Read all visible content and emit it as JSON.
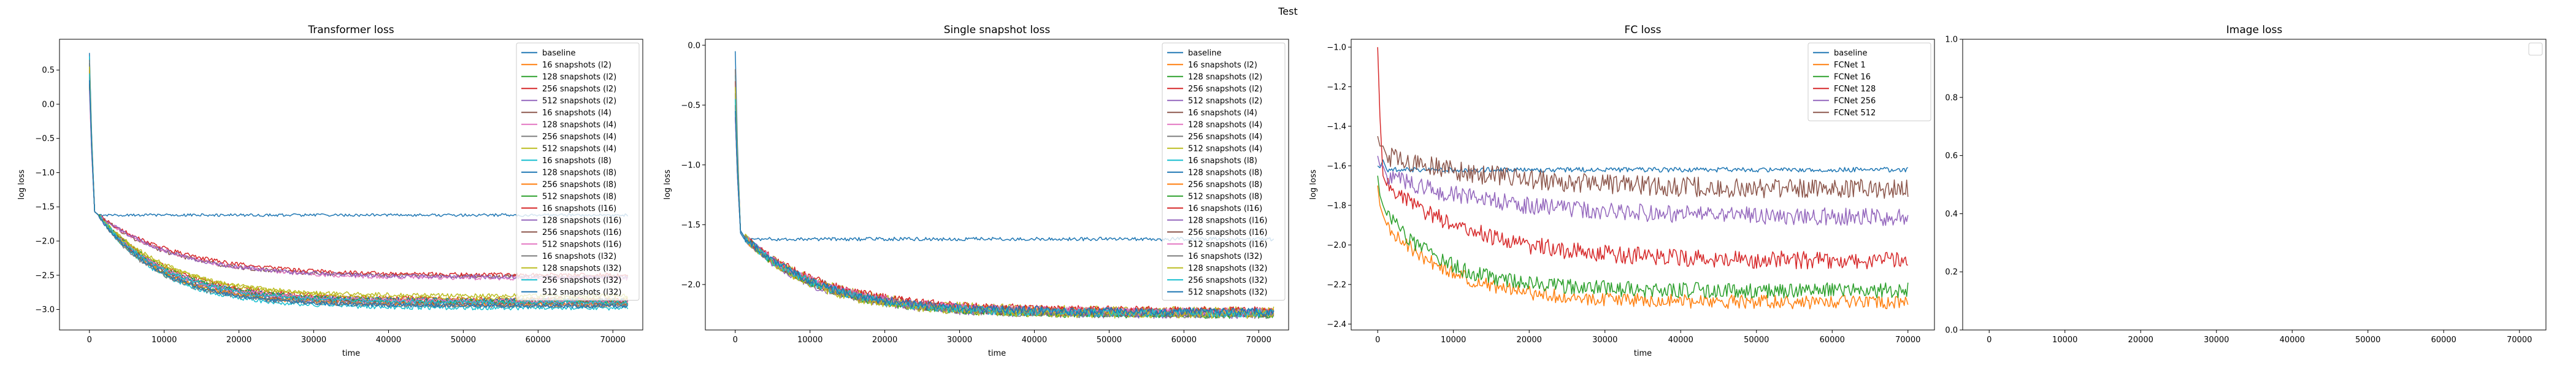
{
  "figure": {
    "suptitle": "Test"
  },
  "palette": [
    "#1f77b4",
    "#ff7f0e",
    "#2ca02c",
    "#d62728",
    "#9467bd",
    "#8c564b",
    "#e377c2",
    "#7f7f7f",
    "#bcbd22",
    "#17becf"
  ],
  "chart_data": [
    {
      "id": "transformer",
      "type": "line",
      "title": "Transformer loss",
      "xlabel": "time",
      "ylabel": "log loss",
      "xlim": [
        -4000,
        74000
      ],
      "ylim": [
        -3.3,
        0.95
      ],
      "xticks": [
        0,
        10000,
        20000,
        30000,
        40000,
        50000,
        60000,
        70000
      ],
      "xtick_labels": [
        "0",
        "10000",
        "20000",
        "30000",
        "40000",
        "50000",
        "60000",
        "70000"
      ],
      "yticks": [
        -3.0,
        -2.5,
        -2.0,
        -1.5,
        -1.0,
        -0.5,
        0.0,
        0.5
      ],
      "ytick_labels": [
        "−3.0",
        "−2.5",
        "−2.0",
        "−1.5",
        "−1.0",
        "−0.5",
        "0.0",
        "0.5"
      ],
      "legend_position": "upper right",
      "series": [
        {
          "name": "baseline",
          "start": 0.75,
          "knee": -1.62,
          "final": -1.62,
          "tau": 0,
          "noise": 0.02,
          "x_end": 72000
        },
        {
          "name": "16 snapshots (l2)",
          "start": 0.6,
          "knee": -1.62,
          "final": -2.88,
          "tau": 9000,
          "noise": 0.03,
          "x_end": 72000
        },
        {
          "name": "128 snapshots (l2)",
          "start": 0.5,
          "knee": -1.62,
          "final": -2.9,
          "tau": 8000,
          "noise": 0.03,
          "x_end": 72000
        },
        {
          "name": "256 snapshots (l2)",
          "start": 0.4,
          "knee": -1.62,
          "final": -2.85,
          "tau": 9500,
          "noise": 0.03,
          "x_end": 72000
        },
        {
          "name": "512 snapshots (l2)",
          "start": 0.3,
          "knee": -1.62,
          "final": -2.92,
          "tau": 9000,
          "noise": 0.03,
          "x_end": 72000
        },
        {
          "name": "16 snapshots (l4)",
          "start": 0.55,
          "knee": -1.62,
          "final": -2.52,
          "tau": 10000,
          "noise": 0.03,
          "x_end": 72000
        },
        {
          "name": "128 snapshots (l4)",
          "start": 0.45,
          "knee": -1.62,
          "final": -2.55,
          "tau": 11000,
          "noise": 0.03,
          "x_end": 72000
        },
        {
          "name": "256 snapshots (l4)",
          "start": 0.35,
          "knee": -1.62,
          "final": -2.95,
          "tau": 9000,
          "noise": 0.03,
          "x_end": 72000
        },
        {
          "name": "512 snapshots (l4)",
          "start": 0.25,
          "knee": -1.62,
          "final": -2.85,
          "tau": 10000,
          "noise": 0.03,
          "x_end": 72000
        },
        {
          "name": "16 snapshots (l8)",
          "start": 0.7,
          "knee": -1.62,
          "final": -2.98,
          "tau": 8500,
          "noise": 0.03,
          "x_end": 72000
        },
        {
          "name": "128 snapshots (l8)",
          "start": 0.6,
          "knee": -1.62,
          "final": -2.87,
          "tau": 9000,
          "noise": 0.03,
          "x_end": 72000
        },
        {
          "name": "256 snapshots (l8)",
          "start": 0.4,
          "knee": -1.62,
          "final": -2.93,
          "tau": 8500,
          "noise": 0.03,
          "x_end": 72000
        },
        {
          "name": "512 snapshots (l8)",
          "start": 0.3,
          "knee": -1.62,
          "final": -2.89,
          "tau": 9500,
          "noise": 0.03,
          "x_end": 72000
        },
        {
          "name": "16 snapshots (l16)",
          "start": 0.5,
          "knee": -1.62,
          "final": -2.5,
          "tau": 11000,
          "noise": 0.03,
          "x_end": 72000
        },
        {
          "name": "128 snapshots (l16)",
          "start": 0.4,
          "knee": -1.62,
          "final": -2.53,
          "tau": 10500,
          "noise": 0.03,
          "x_end": 72000
        },
        {
          "name": "256 snapshots (l16)",
          "start": 0.3,
          "knee": -1.62,
          "final": -2.9,
          "tau": 9000,
          "noise": 0.03,
          "x_end": 72000
        },
        {
          "name": "512 snapshots (l16)",
          "start": 0.2,
          "knee": -1.62,
          "final": -2.88,
          "tau": 9000,
          "noise": 0.03,
          "x_end": 72000
        },
        {
          "name": "16 snapshots (l32)",
          "start": 0.65,
          "knee": -1.62,
          "final": -2.94,
          "tau": 8000,
          "noise": 0.03,
          "x_end": 72000
        },
        {
          "name": "128 snapshots (l32)",
          "start": 0.55,
          "knee": -1.62,
          "final": -2.8,
          "tau": 9000,
          "noise": 0.03,
          "x_end": 72000
        },
        {
          "name": "256 snapshots (l32)",
          "start": 0.45,
          "knee": -1.62,
          "final": -2.9,
          "tau": 9000,
          "noise": 0.03,
          "x_end": 72000
        },
        {
          "name": "512 snapshots (l32)",
          "start": 0.35,
          "knee": -1.62,
          "final": -2.95,
          "tau": 8500,
          "noise": 0.03,
          "x_end": 72000
        }
      ]
    },
    {
      "id": "single",
      "type": "line",
      "title": "Single snapshot loss",
      "xlabel": "time",
      "ylabel": "log loss",
      "xlim": [
        -4000,
        74000
      ],
      "ylim": [
        -2.38,
        0.05
      ],
      "xticks": [
        0,
        10000,
        20000,
        30000,
        40000,
        50000,
        60000,
        70000
      ],
      "xtick_labels": [
        "0",
        "10000",
        "20000",
        "30000",
        "40000",
        "50000",
        "60000",
        "70000"
      ],
      "yticks": [
        -2.0,
        -1.5,
        -1.0,
        -0.5,
        0.0
      ],
      "ytick_labels": [
        "−2.0",
        "−1.5",
        "−1.0",
        "−0.5",
        "0.0"
      ],
      "legend_position": "upper right",
      "series": [
        {
          "name": "baseline",
          "start": -0.05,
          "knee": -1.62,
          "final": -1.62,
          "tau": 0,
          "noise": 0.015,
          "x_end": 72000
        },
        {
          "name": "16 snapshots (l2)",
          "start": -0.3,
          "knee": -1.6,
          "final": -2.24,
          "tau": 10000,
          "noise": 0.035,
          "x_end": 72000
        },
        {
          "name": "128 snapshots (l2)",
          "start": -0.4,
          "knee": -1.6,
          "final": -2.24,
          "tau": 10000,
          "noise": 0.035,
          "x_end": 72000
        },
        {
          "name": "256 snapshots (l2)",
          "start": -0.5,
          "knee": -1.6,
          "final": -2.23,
          "tau": 10500,
          "noise": 0.035,
          "x_end": 72000
        },
        {
          "name": "512 snapshots (l2)",
          "start": -0.6,
          "knee": -1.6,
          "final": -2.25,
          "tau": 9500,
          "noise": 0.035,
          "x_end": 72000
        },
        {
          "name": "16 snapshots (l4)",
          "start": -0.2,
          "knee": -1.6,
          "final": -2.24,
          "tau": 11000,
          "noise": 0.035,
          "x_end": 72000
        },
        {
          "name": "128 snapshots (l4)",
          "start": -0.35,
          "knee": -1.6,
          "final": -2.23,
          "tau": 10000,
          "noise": 0.035,
          "x_end": 72000
        },
        {
          "name": "256 snapshots (l4)",
          "start": -0.45,
          "knee": -1.6,
          "final": -2.25,
          "tau": 10000,
          "noise": 0.035,
          "x_end": 72000
        },
        {
          "name": "512 snapshots (l4)",
          "start": -0.55,
          "knee": -1.6,
          "final": -2.22,
          "tau": 10500,
          "noise": 0.035,
          "x_end": 72000
        },
        {
          "name": "16 snapshots (l8)",
          "start": -0.25,
          "knee": -1.6,
          "final": -2.24,
          "tau": 10000,
          "noise": 0.035,
          "x_end": 72000
        },
        {
          "name": "128 snapshots (l8)",
          "start": -0.4,
          "knee": -1.6,
          "final": -2.24,
          "tau": 10000,
          "noise": 0.035,
          "x_end": 72000
        },
        {
          "name": "256 snapshots (l8)",
          "start": -0.5,
          "knee": -1.6,
          "final": -2.23,
          "tau": 9500,
          "noise": 0.035,
          "x_end": 72000
        },
        {
          "name": "512 snapshots (l8)",
          "start": -0.6,
          "knee": -1.6,
          "final": -2.25,
          "tau": 10000,
          "noise": 0.035,
          "x_end": 72000
        },
        {
          "name": "16 snapshots (l16)",
          "start": -0.3,
          "knee": -1.6,
          "final": -2.22,
          "tau": 11000,
          "noise": 0.035,
          "x_end": 72000
        },
        {
          "name": "128 snapshots (l16)",
          "start": -0.4,
          "knee": -1.6,
          "final": -2.24,
          "tau": 10000,
          "noise": 0.035,
          "x_end": 72000
        },
        {
          "name": "256 snapshots (l16)",
          "start": -0.5,
          "knee": -1.6,
          "final": -2.24,
          "tau": 10000,
          "noise": 0.035,
          "x_end": 72000
        },
        {
          "name": "512 snapshots (l16)",
          "start": -0.6,
          "knee": -1.6,
          "final": -2.23,
          "tau": 10500,
          "noise": 0.035,
          "x_end": 72000
        },
        {
          "name": "16 snapshots (l32)",
          "start": -0.2,
          "knee": -1.6,
          "final": -2.24,
          "tau": 10000,
          "noise": 0.035,
          "x_end": 72000
        },
        {
          "name": "128 snapshots (l32)",
          "start": -0.35,
          "knee": -1.6,
          "final": -2.25,
          "tau": 9500,
          "noise": 0.035,
          "x_end": 72000
        },
        {
          "name": "256 snapshots (l32)",
          "start": -0.45,
          "knee": -1.6,
          "final": -2.24,
          "tau": 10000,
          "noise": 0.035,
          "x_end": 72000
        },
        {
          "name": "512 snapshots (l32)",
          "start": -0.55,
          "knee": -1.6,
          "final": -2.23,
          "tau": 10000,
          "noise": 0.035,
          "x_end": 72000
        }
      ]
    },
    {
      "id": "fc",
      "type": "line",
      "title": "FC loss",
      "xlabel": "time",
      "ylabel": "log loss",
      "xlim": [
        -3500,
        73500
      ],
      "ylim": [
        -2.43,
        -0.96
      ],
      "xticks": [
        0,
        10000,
        20000,
        30000,
        40000,
        50000,
        60000,
        70000
      ],
      "xtick_labels": [
        "0",
        "10000",
        "20000",
        "30000",
        "40000",
        "50000",
        "60000",
        "70000"
      ],
      "yticks": [
        -2.4,
        -2.2,
        -2.0,
        -1.8,
        -1.6,
        -1.4,
        -1.2,
        -1.0
      ],
      "ytick_labels": [
        "−2.4",
        "−2.2",
        "−2.0",
        "−1.8",
        "−1.6",
        "−1.4",
        "−1.2",
        "−1.0"
      ],
      "legend_position": "upper right",
      "series": [
        {
          "name": "baseline",
          "start": -1.6,
          "knee": -1.62,
          "final": -1.62,
          "tau": 0,
          "noise": 0.012,
          "x_end": 70000
        },
        {
          "name": "FCNet 1",
          "start": -1.7,
          "knee": -1.9,
          "final": -2.29,
          "tau": 9000,
          "noise": 0.035,
          "x_end": 70000
        },
        {
          "name": "FCNet 16",
          "start": -1.65,
          "knee": -1.85,
          "final": -2.23,
          "tau": 8000,
          "noise": 0.04,
          "x_end": 70000
        },
        {
          "name": "FCNet 128",
          "start": -1.0,
          "knee": -1.7,
          "final": -2.08,
          "tau": 12000,
          "noise": 0.045,
          "x_end": 70000
        },
        {
          "name": "FCNet 256",
          "start": -1.55,
          "knee": -1.65,
          "final": -1.86,
          "tau": 15000,
          "noise": 0.045,
          "x_end": 70000
        },
        {
          "name": "FCNet 512",
          "start": -1.45,
          "knee": -1.55,
          "final": -1.72,
          "tau": 16000,
          "noise": 0.05,
          "x_end": 70000
        }
      ]
    },
    {
      "id": "image",
      "type": "line",
      "title": "Image loss",
      "xlabel": "",
      "ylabel": "",
      "xlim": [
        -3500,
        73500
      ],
      "ylim": [
        0,
        1
      ],
      "xticks": [
        0,
        10000,
        20000,
        30000,
        40000,
        50000,
        60000,
        70000
      ],
      "xtick_labels": [
        "0",
        "10000",
        "20000",
        "30000",
        "40000",
        "50000",
        "60000",
        "70000"
      ],
      "yticks": [
        0.0,
        0.2,
        0.4,
        0.6,
        0.8,
        1.0
      ],
      "ytick_labels": [
        "0.0",
        "0.2",
        "0.4",
        "0.6",
        "0.8",
        "1.0"
      ],
      "legend_position": "upper right",
      "series": []
    }
  ]
}
